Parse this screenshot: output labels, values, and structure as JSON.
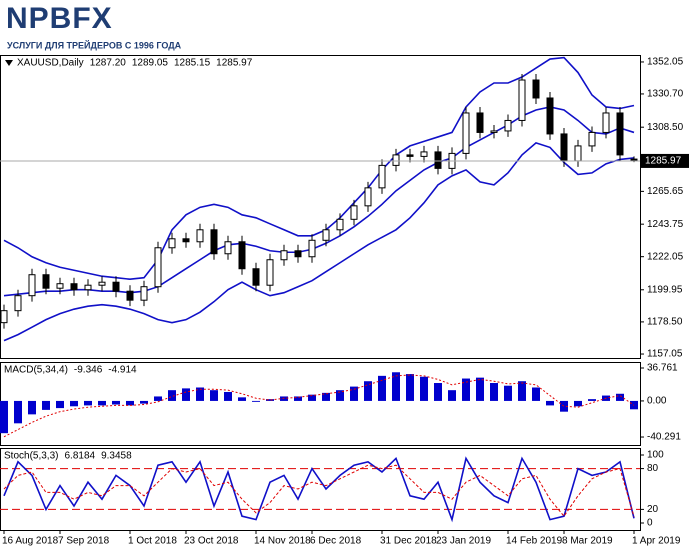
{
  "header": {
    "logo": "NPBFX",
    "tagline": "УСЛУГИ ДЛЯ ТРЕЙДЕРОВ С 1996 ГОДА"
  },
  "chart_data": [
    {
      "type": "candlestick",
      "title": "XAUUSD,Daily",
      "quote": [
        "1287.20",
        "1289.05",
        "1285.15",
        "1285.97"
      ],
      "categories": [
        "16 Aug 2018",
        null,
        null,
        null,
        "7 Sep 2018",
        null,
        null,
        null,
        null,
        "1 Oct 2018",
        null,
        null,
        null,
        "23 Oct 2018",
        null,
        null,
        null,
        null,
        "14 Nov 2018",
        null,
        null,
        null,
        "6 Dec 2018",
        null,
        null,
        null,
        null,
        "31 Dec 2018",
        null,
        null,
        null,
        "23 Jan 2019",
        null,
        null,
        null,
        null,
        "14 Feb 2019",
        null,
        null,
        null,
        "8 Mar 2019",
        null,
        null,
        null,
        null,
        "1 Apr 2019"
      ],
      "open": [
        1178,
        1186,
        1196,
        1210,
        1201,
        1204,
        1200,
        1203,
        1205,
        1199,
        1193,
        1202,
        1228,
        1234,
        1232,
        1240,
        1224,
        1232,
        1214,
        1203,
        1220,
        1226,
        1222,
        1233,
        1240,
        1247,
        1256,
        1268,
        1283,
        1290,
        1289,
        1292,
        1281,
        1291,
        1318,
        1305,
        1306,
        1313,
        1340,
        1328,
        1304,
        1286,
        1296,
        1305,
        1318,
        1287.2
      ],
      "high": [
        1190,
        1200,
        1214,
        1214,
        1208,
        1208,
        1207,
        1209,
        1209,
        1203,
        1206,
        1232,
        1238,
        1238,
        1244,
        1244,
        1236,
        1236,
        1218,
        1224,
        1230,
        1230,
        1237,
        1244,
        1251,
        1260,
        1272,
        1287,
        1294,
        1294,
        1296,
        1296,
        1295,
        1322,
        1322,
        1310,
        1317,
        1344,
        1344,
        1332,
        1308,
        1300,
        1309,
        1322,
        1322,
        1289.05
      ],
      "low": [
        1174,
        1182,
        1192,
        1197,
        1197,
        1196,
        1196,
        1199,
        1195,
        1189,
        1189,
        1198,
        1224,
        1228,
        1228,
        1220,
        1220,
        1210,
        1199,
        1199,
        1216,
        1218,
        1218,
        1229,
        1236,
        1243,
        1252,
        1264,
        1279,
        1285,
        1285,
        1277,
        1277,
        1287,
        1301,
        1301,
        1302,
        1309,
        1324,
        1300,
        1282,
        1282,
        1292,
        1301,
        1286,
        1285.15
      ],
      "close": [
        1186,
        1196,
        1210,
        1201,
        1204,
        1200,
        1203,
        1205,
        1199,
        1193,
        1202,
        1228,
        1234,
        1232,
        1240,
        1224,
        1232,
        1214,
        1203,
        1220,
        1226,
        1222,
        1233,
        1240,
        1247,
        1256,
        1268,
        1283,
        1290,
        1289,
        1292,
        1281,
        1291,
        1318,
        1305,
        1306,
        1313,
        1340,
        1328,
        1304,
        1286,
        1296,
        1305,
        1318,
        1290,
        1285.97
      ],
      "bands": [
        {
          "color": "#1010c8",
          "values": [
            1233,
            1228,
            1222,
            1218,
            1215,
            1213,
            1211,
            1209,
            1208,
            1207,
            1208,
            1220,
            1240,
            1250,
            1255,
            1257,
            1255,
            1250,
            1248,
            1244,
            1240,
            1236,
            1236,
            1240,
            1248,
            1258,
            1268,
            1280,
            1290,
            1296,
            1299,
            1302,
            1305,
            1322,
            1332,
            1338,
            1338,
            1342,
            1348,
            1354,
            1355,
            1345,
            1330,
            1322,
            1321,
            1323
          ]
        },
        {
          "color": "#1010c8",
          "values": [
            1196,
            1197,
            1198,
            1199,
            1199,
            1200,
            1200,
            1199,
            1199,
            1198,
            1199,
            1202,
            1208,
            1214,
            1220,
            1226,
            1230,
            1231,
            1229,
            1226,
            1225,
            1225,
            1227,
            1231,
            1236,
            1242,
            1249,
            1257,
            1266,
            1273,
            1280,
            1285,
            1288,
            1295,
            1300,
            1305,
            1310,
            1316,
            1320,
            1322,
            1320,
            1313,
            1305,
            1304,
            1308,
            1305
          ]
        },
        {
          "color": "#1010c8",
          "values": [
            1166,
            1170,
            1175,
            1180,
            1184,
            1187,
            1189,
            1190,
            1189,
            1187,
            1184,
            1180,
            1178,
            1180,
            1185,
            1192,
            1200,
            1205,
            1200,
            1196,
            1198,
            1202,
            1206,
            1212,
            1218,
            1224,
            1230,
            1235,
            1240,
            1248,
            1258,
            1270,
            1276,
            1280,
            1272,
            1270,
            1278,
            1290,
            1298,
            1295,
            1285,
            1277,
            1278,
            1284,
            1287,
            1288
          ]
        }
      ],
      "last_price": 1285.97,
      "ylim": [
        1154.4,
        1356.7
      ],
      "yticks": [
        1352.05,
        {
          "value": 1330.7,
          "label": "1330.70"
        },
        {
          "value": 1308.5,
          "label": "1308.50"
        },
        1265.65,
        1243.75,
        1222.05,
        1199.95,
        {
          "value": 1178.5,
          "label": "1178.50"
        },
        1157.05
      ]
    },
    {
      "type": "bar",
      "title": "MACD(5,34,4)",
      "color": "#0000cd",
      "values": [
        -36,
        -25,
        -15,
        -10,
        -8,
        -6,
        -5,
        -5,
        -4,
        -5,
        -3,
        5,
        12,
        14,
        15,
        12,
        10,
        4,
        -1,
        2,
        5,
        5,
        7,
        9,
        12,
        16,
        22,
        28,
        32,
        30,
        27,
        20,
        12,
        25,
        26,
        20,
        17,
        22,
        15,
        -5,
        -12,
        -6,
        2,
        6,
        8,
        -9.346
      ],
      "signal": {
        "color": "#e00000",
        "values": [
          -40,
          -32,
          -24,
          -17,
          -12,
          -9,
          -7,
          -6,
          -5,
          -5,
          -4,
          -1,
          5,
          10,
          13,
          13,
          12,
          8,
          3,
          1,
          3,
          4,
          6,
          8,
          10,
          13,
          18,
          23,
          28,
          29,
          28,
          24,
          18,
          21,
          24,
          22,
          19,
          20,
          18,
          6,
          -6,
          -7,
          -2,
          3,
          6,
          -4.914
        ]
      },
      "ylim": [
        -49.2,
        43.46
      ],
      "yticks": [
        36.761,
        {
          "value": 0,
          "label": "0.00"
        },
        -40.291
      ]
    },
    {
      "type": "line",
      "title": "Stoch(5,3,3)",
      "series": [
        {
          "color": "#1010c8",
          "values": [
            40,
            90,
            70,
            20,
            55,
            25,
            60,
            35,
            70,
            55,
            25,
            85,
            90,
            60,
            90,
            25,
            75,
            10,
            5,
            60,
            70,
            35,
            80,
            50,
            70,
            85,
            90,
            75,
            95,
            40,
            35,
            60,
            5,
            95,
            60,
            40,
            30,
            95,
            60,
            5,
            10,
            80,
            70,
            75,
            90,
            6.8184
          ]
        },
        {
          "color": "#e00000",
          "dash": true,
          "values": [
            50,
            70,
            75,
            45,
            45,
            35,
            45,
            40,
            55,
            55,
            40,
            60,
            80,
            75,
            80,
            55,
            60,
            35,
            15,
            30,
            55,
            50,
            60,
            55,
            65,
            75,
            85,
            80,
            85,
            65,
            45,
            45,
            35,
            60,
            70,
            55,
            40,
            65,
            70,
            35,
            10,
            40,
            65,
            75,
            80,
            9.3458
          ]
        }
      ],
      "levels": [
        80,
        20
      ],
      "level_color": "#e00000",
      "ylim": [
        -10.3,
        110.3
      ],
      "yticks": [
        100,
        80,
        20,
        0
      ]
    }
  ]
}
